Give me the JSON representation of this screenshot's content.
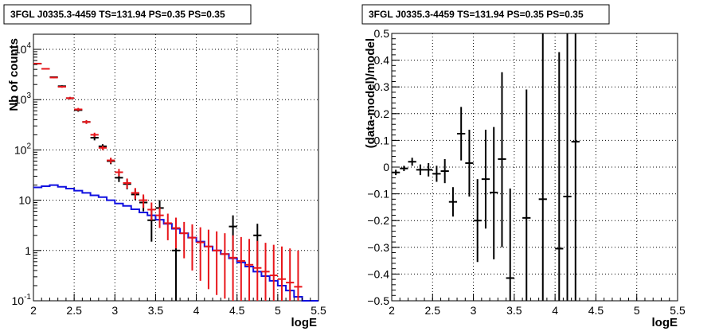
{
  "chart_data": [
    {
      "type": "scatter",
      "title": "3FGL J0335.3-4459 TS=131.94 PS=0.35 PS=0.35",
      "xlabel": "logE",
      "ylabel": "Nb of counts",
      "xlim": [
        2,
        5.5
      ],
      "ylim": [
        0.1,
        20000
      ],
      "y_scale": "log",
      "grid": true,
      "x_ticks": [
        "2",
        "2.5",
        "3",
        "3.5",
        "4",
        "4.5",
        "5",
        "5.5"
      ],
      "y_ticks": [
        {
          "value": 0.1,
          "base": "10",
          "exp": "-1"
        },
        {
          "value": 1,
          "base": "1",
          "exp": ""
        },
        {
          "value": 10,
          "base": "10",
          "exp": ""
        },
        {
          "value": 100,
          "base": "10",
          "exp": "2"
        },
        {
          "value": 1000,
          "base": "10",
          "exp": "3"
        },
        {
          "value": 10000,
          "base": "10",
          "exp": "4"
        }
      ],
      "bin_width": 0.1,
      "series": [
        {
          "kind": "errorbar",
          "color": "#000000",
          "points": [
            {
              "x": 2.05,
              "y": 5200,
              "ylo": 5060,
              "yhi": 5340
            },
            {
              "x": 2.15,
              "y": 4100,
              "ylo": 3980,
              "yhi": 4230
            },
            {
              "x": 2.25,
              "y": 2800,
              "ylo": 2700,
              "yhi": 2900
            },
            {
              "x": 2.35,
              "y": 1850,
              "ylo": 1770,
              "yhi": 1930
            },
            {
              "x": 2.45,
              "y": 1070,
              "ylo": 1010,
              "yhi": 1130
            },
            {
              "x": 2.55,
              "y": 620,
              "ylo": 575,
              "yhi": 665
            },
            {
              "x": 2.65,
              "y": 360,
              "ylo": 330,
              "yhi": 390
            },
            {
              "x": 2.75,
              "y": 175,
              "ylo": 155,
              "yhi": 195
            },
            {
              "x": 2.85,
              "y": 118,
              "ylo": 106,
              "yhi": 130
            },
            {
              "x": 2.95,
              "y": 60,
              "ylo": 52,
              "yhi": 68
            },
            {
              "x": 3.05,
              "y": 28,
              "ylo": 23,
              "yhi": 34
            },
            {
              "x": 3.15,
              "y": 21,
              "ylo": 16.5,
              "yhi": 26
            },
            {
              "x": 3.25,
              "y": 13,
              "ylo": 10,
              "yhi": 16.5
            },
            {
              "x": 3.35,
              "y": 9,
              "ylo": 6,
              "yhi": 12
            },
            {
              "x": 3.45,
              "y": 4,
              "ylo": 1.5,
              "yhi": 6.5
            },
            {
              "x": 3.55,
              "y": 7,
              "ylo": 4.5,
              "yhi": 10
            },
            {
              "x": 3.75,
              "y": 1,
              "ylo": 0.1,
              "yhi": 3
            },
            {
              "x": 4.45,
              "y": 3,
              "ylo": 1,
              "yhi": 5
            },
            {
              "x": 4.75,
              "y": 2,
              "ylo": 0.5,
              "yhi": 3.4
            }
          ]
        },
        {
          "kind": "errorbar",
          "color": "#e8151a",
          "points": [
            {
              "x": 2.05,
              "y": 5200,
              "ylo": 5060,
              "yhi": 5340
            },
            {
              "x": 2.15,
              "y": 4100,
              "ylo": 3980,
              "yhi": 4230
            },
            {
              "x": 2.25,
              "y": 2750,
              "ylo": 2650,
              "yhi": 2850
            },
            {
              "x": 2.35,
              "y": 1800,
              "ylo": 1720,
              "yhi": 1880
            },
            {
              "x": 2.45,
              "y": 1070,
              "ylo": 1010,
              "yhi": 1130
            },
            {
              "x": 2.55,
              "y": 640,
              "ylo": 595,
              "yhi": 685
            },
            {
              "x": 2.65,
              "y": 360,
              "ylo": 330,
              "yhi": 390
            },
            {
              "x": 2.75,
              "y": 200,
              "ylo": 180,
              "yhi": 220
            },
            {
              "x": 2.85,
              "y": 110,
              "ylo": 99,
              "yhi": 121
            },
            {
              "x": 2.95,
              "y": 62,
              "ylo": 54,
              "yhi": 70
            },
            {
              "x": 3.05,
              "y": 36,
              "ylo": 30,
              "yhi": 42
            },
            {
              "x": 3.15,
              "y": 22,
              "ylo": 17,
              "yhi": 27
            },
            {
              "x": 3.25,
              "y": 14,
              "ylo": 10.5,
              "yhi": 17.5
            },
            {
              "x": 3.35,
              "y": 10,
              "ylo": 7,
              "yhi": 13
            },
            {
              "x": 3.45,
              "y": 6.5,
              "ylo": 4,
              "yhi": 9
            },
            {
              "x": 3.55,
              "y": 5,
              "ylo": 2.8,
              "yhi": 7.2
            },
            {
              "x": 3.65,
              "y": 3.5,
              "ylo": 1.6,
              "yhi": 5.4
            },
            {
              "x": 3.75,
              "y": 2.8,
              "ylo": 1.1,
              "yhi": 4.5
            },
            {
              "x": 3.85,
              "y": 2.2,
              "ylo": 0.7,
              "yhi": 3.7
            },
            {
              "x": 3.95,
              "y": 1.8,
              "ylo": 0.4,
              "yhi": 3.3
            },
            {
              "x": 4.05,
              "y": 1.45,
              "ylo": 0.25,
              "yhi": 2.9
            },
            {
              "x": 4.15,
              "y": 1.2,
              "ylo": 0.17,
              "yhi": 2.6
            },
            {
              "x": 4.25,
              "y": 1.0,
              "ylo": 0.13,
              "yhi": 2.4
            },
            {
              "x": 4.35,
              "y": 0.85,
              "ylo": 0.11,
              "yhi": 2.2
            },
            {
              "x": 4.45,
              "y": 0.72,
              "ylo": 0.1,
              "yhi": 2.0
            },
            {
              "x": 4.55,
              "y": 0.62,
              "ylo": 0.1,
              "yhi": 1.85
            },
            {
              "x": 4.65,
              "y": 0.52,
              "ylo": 0.1,
              "yhi": 1.7
            },
            {
              "x": 4.75,
              "y": 0.45,
              "ylo": 0.1,
              "yhi": 1.55
            },
            {
              "x": 4.85,
              "y": 0.38,
              "ylo": 0.1,
              "yhi": 1.42
            },
            {
              "x": 4.95,
              "y": 0.32,
              "ylo": 0.1,
              "yhi": 1.3
            },
            {
              "x": 5.05,
              "y": 0.27,
              "ylo": 0.1,
              "yhi": 1.2
            },
            {
              "x": 5.15,
              "y": 0.23,
              "ylo": 0.1,
              "yhi": 1.1
            },
            {
              "x": 5.25,
              "y": 0.19,
              "ylo": 0.1,
              "yhi": 1.0
            }
          ]
        },
        {
          "kind": "step",
          "color": "#1010e0",
          "x_edges": [
            2.0,
            2.1,
            2.2,
            2.3,
            2.4,
            2.5,
            2.6,
            2.7,
            2.8,
            2.9,
            3.0,
            3.1,
            3.2,
            3.3,
            3.4,
            3.5,
            3.6,
            3.7,
            3.8,
            3.9,
            4.0,
            4.1,
            4.2,
            4.3,
            4.4,
            4.5,
            4.6,
            4.7,
            4.8,
            4.9,
            5.0,
            5.1,
            5.2,
            5.3,
            5.4,
            5.5
          ],
          "values": [
            18,
            19,
            20,
            18.5,
            17,
            15.5,
            14,
            12.5,
            11.5,
            10,
            8.6,
            7.7,
            6.6,
            5.7,
            5.0,
            4.1,
            3.4,
            2.7,
            2.2,
            1.8,
            1.5,
            1.2,
            1.0,
            0.85,
            0.7,
            0.58,
            0.48,
            0.38,
            0.31,
            0.25,
            0.2,
            0.16,
            0.12,
            0.1,
            0.1
          ]
        }
      ]
    },
    {
      "type": "scatter",
      "title": "3FGL J0335.3-4459 TS=131.94 PS=0.35 PS=0.35",
      "xlabel": "logE",
      "ylabel": "(data-model)/model",
      "xlim": [
        2,
        5.5
      ],
      "ylim": [
        -0.5,
        0.5
      ],
      "grid": true,
      "x_ticks": [
        "2",
        "2.5",
        "3",
        "3.5",
        "4",
        "4.5",
        "5",
        "5.5"
      ],
      "y_ticks": [
        "−0.5",
        "−0.4",
        "−0.3",
        "−0.2",
        "−0.1",
        "0",
        "0.1",
        "0.2",
        "0.3",
        "0.4",
        "0.5"
      ],
      "bin_width": 0.1,
      "series": [
        {
          "kind": "errorbar",
          "color": "#000000",
          "points": [
            {
              "x": 2.05,
              "y": -0.02,
              "ylo": -0.03,
              "yhi": -0.01
            },
            {
              "x": 2.15,
              "y": -0.005,
              "ylo": -0.015,
              "yhi": 0.005
            },
            {
              "x": 2.25,
              "y": 0.02,
              "ylo": 0.005,
              "yhi": 0.035
            },
            {
              "x": 2.35,
              "y": -0.01,
              "ylo": -0.03,
              "yhi": 0.01
            },
            {
              "x": 2.45,
              "y": -0.01,
              "ylo": -0.035,
              "yhi": 0.015
            },
            {
              "x": 2.55,
              "y": -0.025,
              "ylo": -0.055,
              "yhi": 0.005
            },
            {
              "x": 2.65,
              "y": -0.015,
              "ylo": -0.06,
              "yhi": 0.03
            },
            {
              "x": 2.75,
              "y": -0.13,
              "ylo": -0.185,
              "yhi": -0.075
            },
            {
              "x": 2.85,
              "y": 0.125,
              "ylo": 0.025,
              "yhi": 0.225
            },
            {
              "x": 2.95,
              "y": 0.015,
              "ylo": -0.11,
              "yhi": 0.14
            },
            {
              "x": 3.05,
              "y": -0.2,
              "ylo": -0.355,
              "yhi": -0.045
            },
            {
              "x": 3.15,
              "y": -0.045,
              "ylo": -0.23,
              "yhi": 0.14
            },
            {
              "x": 3.25,
              "y": -0.095,
              "ylo": -0.345,
              "yhi": 0.15
            },
            {
              "x": 3.35,
              "y": 0.03,
              "ylo": -0.3,
              "yhi": 0.355
            },
            {
              "x": 3.45,
              "y": -0.415,
              "ylo": -0.5,
              "yhi": -0.08
            },
            {
              "x": 3.65,
              "y": -0.19,
              "ylo": -0.5,
              "yhi": 0.29
            },
            {
              "x": 3.85,
              "y": -0.12,
              "ylo": -0.5,
              "yhi": 0.5
            },
            {
              "x": 4.05,
              "y": -0.305,
              "ylo": -0.5,
              "yhi": 0.43
            },
            {
              "x": 4.15,
              "y": -0.11,
              "ylo": -0.5,
              "yhi": 0.5
            },
            {
              "x": 4.25,
              "y": 0.095,
              "ylo": -0.5,
              "yhi": 0.5
            }
          ]
        }
      ]
    }
  ]
}
